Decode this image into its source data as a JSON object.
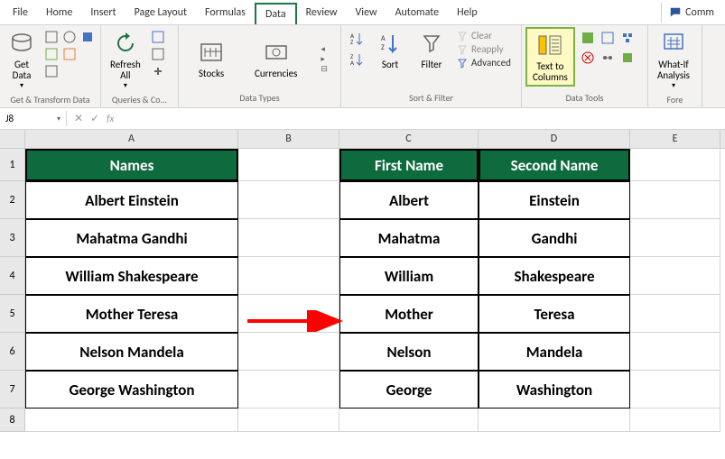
{
  "tabs": {
    "file": "File",
    "home": "Home",
    "insert": "Insert",
    "page_layout": "Page Layout",
    "formulas": "Formulas",
    "data": "Data",
    "review": "Review",
    "view": "View",
    "automate": "Automate",
    "help": "Help"
  },
  "comments_label": "Comm",
  "ribbon": {
    "get_data": "Get\nData",
    "group_get_transform": "Get & Transform Data",
    "refresh_all": "Refresh\nAll",
    "group_queries": "Queries & Co...",
    "stocks": "Stocks",
    "currencies": "Currencies",
    "group_data_types": "Data Types",
    "sort": "Sort",
    "filter": "Filter",
    "clear": "Clear",
    "reapply": "Reapply",
    "advanced": "Advanced",
    "group_sort_filter": "Sort & Filter",
    "text_to_columns": "Text to\nColumns",
    "group_data_tools": "Data Tools",
    "what_if": "What-If\nAnalysis",
    "group_forecast": "Fore"
  },
  "name_box": "J8",
  "fx_label": "fx",
  "columns": [
    "A",
    "B",
    "C",
    "D",
    "E"
  ],
  "headers": {
    "names": "Names",
    "first": "First Name",
    "second": "Second Name"
  },
  "rows": [
    {
      "full": "Albert Einstein",
      "first": "Albert",
      "second": "Einstein"
    },
    {
      "full": "Mahatma Gandhi",
      "first": "Mahatma",
      "second": "Gandhi"
    },
    {
      "full": "William Shakespeare",
      "first": "William",
      "second": "Shakespeare"
    },
    {
      "full": "Mother Teresa",
      "first": "Mother",
      "second": "Teresa"
    },
    {
      "full": "Nelson Mandela",
      "first": "Nelson",
      "second": "Mandela"
    },
    {
      "full": "George Washington",
      "first": "George",
      "second": "Washington"
    }
  ],
  "colors": {
    "header_bg": "#0e6b3d",
    "tab_highlight": "#1a7a3f",
    "btn_highlight_border": "#7cb342",
    "btn_highlight_bg": "#fff9c4",
    "arrow": "#ff0000"
  }
}
